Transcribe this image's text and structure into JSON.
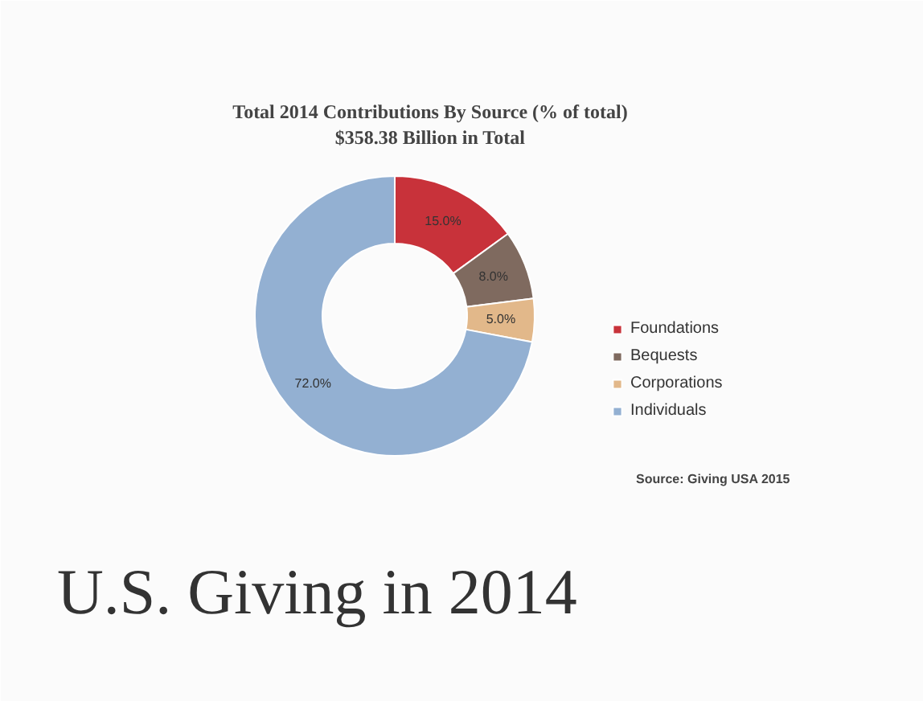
{
  "chart_data": {
    "type": "donut",
    "title": "Total 2014 Contributions By Source (% of total)",
    "subtitle": "$358.38 Billion in Total",
    "categories": [
      "Foundations",
      "Bequests",
      "Corporations",
      "Individuals"
    ],
    "values": [
      15.0,
      8.0,
      5.0,
      72.0
    ],
    "colors": [
      "#c8323a",
      "#7f6a5f",
      "#e2b88a",
      "#93b0d2"
    ],
    "value_labels": [
      "15.0%",
      "8.0%",
      "5.0%",
      "72.0%"
    ],
    "legend": "right",
    "annotations": [
      "Source: Giving USA 2015",
      "U.S. Giving in 2014"
    ]
  }
}
